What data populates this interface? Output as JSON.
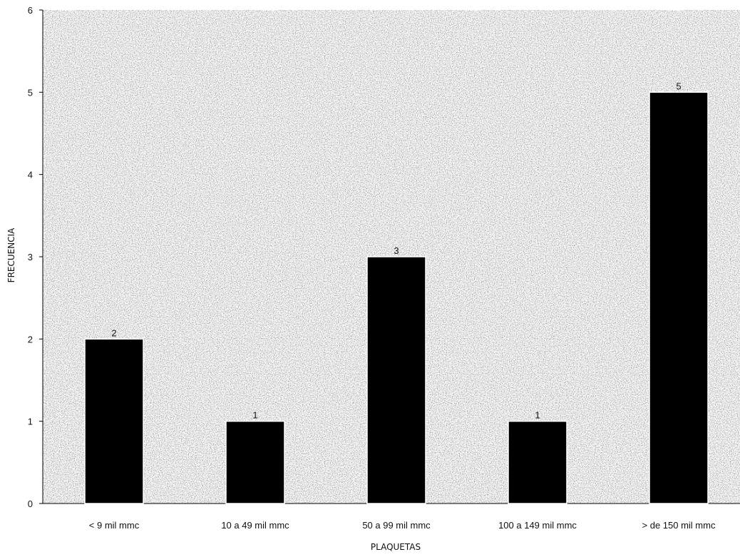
{
  "chart_data": {
    "type": "bar",
    "title": "",
    "xlabel": "PLAQUETAS",
    "ylabel": "FRECUENCIA",
    "categories": [
      "< 9 mil mmc",
      "10 a 49 mil mmc",
      "50 a 99 mil mmc",
      "100 a 149 mil mmc",
      "> de 150 mil mmc"
    ],
    "values": [
      2,
      1,
      3,
      1,
      5
    ],
    "data_labels": [
      "2",
      "1",
      "3",
      "1",
      "5"
    ],
    "ylim": [
      0,
      6
    ],
    "yticks": [
      0,
      1,
      2,
      3,
      4,
      5,
      6
    ],
    "grid": false,
    "legend": "none",
    "colors": {
      "bar": "#000000",
      "plot_background": "#7a7a7a",
      "text": "#111111"
    }
  }
}
